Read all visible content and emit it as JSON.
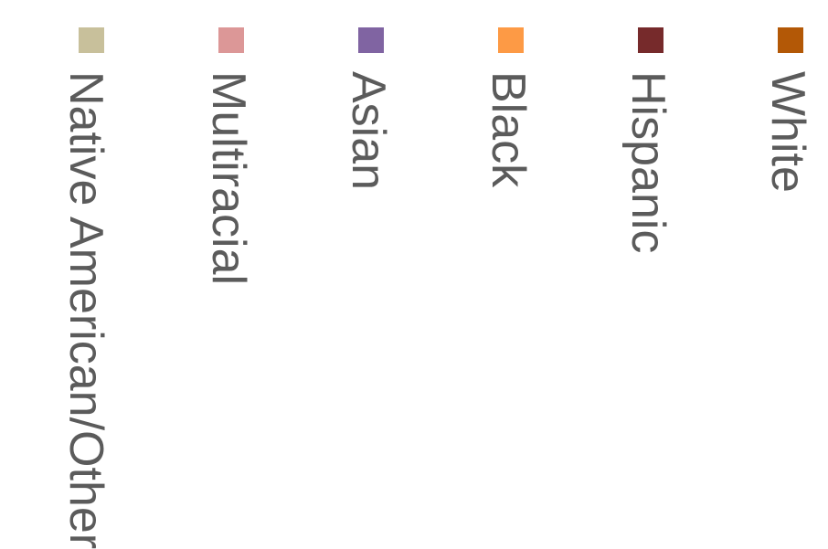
{
  "chart_data": {
    "type": "bar",
    "title": "",
    "legend": {
      "placement": "top",
      "orientation": "vertical-text",
      "entries": [
        {
          "name": "White",
          "color": "#b35806"
        },
        {
          "name": "Hispanic",
          "color": "#762a2b"
        },
        {
          "name": "Black",
          "color": "#fd9a45"
        },
        {
          "name": "Asian",
          "color": "#8064a2"
        },
        {
          "name": "Multiracial",
          "color": "#dc9797"
        },
        {
          "name": "Native American/Other",
          "color": "#c8c09b"
        }
      ]
    }
  }
}
